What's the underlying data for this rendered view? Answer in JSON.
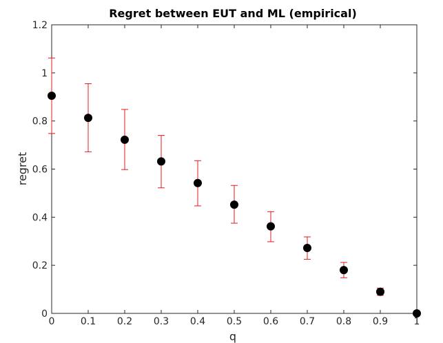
{
  "chart_data": {
    "type": "scatter",
    "title": "Regret between EUT and ML (empirical)",
    "xlabel": "q",
    "ylabel": "regret",
    "xlim": [
      0,
      1
    ],
    "ylim": [
      0,
      1.2
    ],
    "x_ticks": [
      "0",
      "0.1",
      "0.2",
      "0.3",
      "0.4",
      "0.5",
      "0.6",
      "0.7",
      "0.8",
      "0.9",
      "1"
    ],
    "y_ticks": [
      "0",
      "0.2",
      "0.4",
      "0.6",
      "0.8",
      "1",
      "1.2"
    ],
    "grid": false,
    "series": [
      {
        "x": [
          0,
          0.1,
          0.2,
          0.3,
          0.4,
          0.5,
          0.6,
          0.7,
          0.8,
          0.9,
          1.0
        ],
        "y": [
          0.905,
          0.813,
          0.722,
          0.632,
          0.542,
          0.452,
          0.362,
          0.272,
          0.18,
          0.09,
          0.0
        ],
        "err_low": [
          0.748,
          0.672,
          0.598,
          0.522,
          0.447,
          0.375,
          0.298,
          0.225,
          0.148,
          0.075,
          0.0
        ],
        "err_high": [
          1.062,
          0.955,
          0.848,
          0.74,
          0.635,
          0.532,
          0.423,
          0.318,
          0.212,
          0.105,
          0.0
        ]
      }
    ],
    "colors": {
      "marker": "#000000",
      "error_bar": "#e41a1c",
      "axis": "#262626"
    }
  }
}
